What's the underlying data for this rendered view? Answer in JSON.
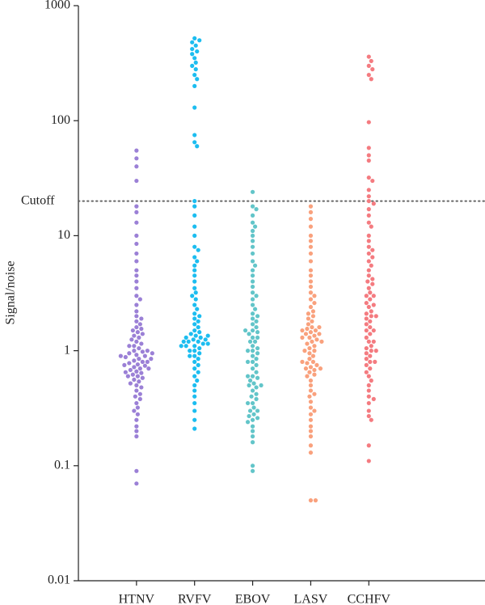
{
  "chart_data": {
    "type": "beeswarm",
    "y_label": "Signal/noise",
    "log_y": true,
    "ylim": [
      0.01,
      1000
    ],
    "yticks": [
      0.01,
      0.1,
      1,
      10,
      100,
      1000
    ],
    "cutoff": {
      "value": 20,
      "label": "Cutoff"
    },
    "series": [
      {
        "name": "HTNV",
        "color": "#9b80d6",
        "values": [
          55,
          47,
          40,
          30,
          18,
          16,
          13,
          10,
          8.5,
          7,
          6,
          5,
          4.5,
          4,
          3.5,
          3,
          2.8,
          2.5,
          2.2,
          2,
          1.9,
          1.8,
          1.7,
          1.6,
          1.55,
          1.5,
          1.45,
          1.4,
          1.35,
          1.3,
          1.25,
          1.2,
          1.15,
          1.1,
          1.05,
          1.0,
          0.98,
          0.95,
          0.92,
          0.9,
          0.88,
          0.85,
          0.82,
          0.8,
          0.78,
          0.76,
          0.74,
          0.72,
          0.7,
          0.68,
          0.66,
          0.64,
          0.62,
          0.6,
          0.58,
          0.56,
          0.54,
          0.52,
          0.5,
          0.48,
          0.45,
          0.42,
          0.4,
          0.38,
          0.35,
          0.32,
          0.3,
          0.28,
          0.25,
          0.22,
          0.2,
          0.18,
          0.09,
          0.07,
          0.8,
          0.75,
          0.85,
          0.9,
          0.7,
          1.0,
          1.1,
          0.6,
          0.65,
          0.95
        ]
      },
      {
        "name": "RVFV",
        "color": "#1cbdf0",
        "values": [
          520,
          500,
          480,
          450,
          420,
          400,
          380,
          350,
          320,
          300,
          280,
          250,
          230,
          200,
          130,
          75,
          65,
          60,
          20,
          18,
          15,
          12,
          10,
          8,
          7.5,
          6.5,
          6,
          5.5,
          5,
          4.5,
          4,
          3.5,
          3.2,
          3,
          2.8,
          2.5,
          2.3,
          2.1,
          2,
          1.9,
          1.8,
          1.7,
          1.6,
          1.5,
          1.45,
          1.4,
          1.35,
          1.3,
          1.25,
          1.2,
          1.2,
          1.15,
          1.1,
          1.1,
          1.05,
          1,
          1,
          0.95,
          0.9,
          0.9,
          0.85,
          0.8,
          0.75,
          0.7,
          0.65,
          0.6,
          0.55,
          0.5,
          0.45,
          0.4,
          0.35,
          0.3,
          0.25,
          0.21,
          1.2,
          1.3,
          1.25,
          1.15,
          1.1,
          1.35
        ]
      },
      {
        "name": "EBOV",
        "color": "#62c5c9",
        "values": [
          24,
          18,
          17,
          15,
          13,
          12,
          11,
          10,
          9,
          8,
          7,
          6,
          5.5,
          5,
          4.5,
          4,
          3.6,
          3.2,
          3,
          2.8,
          2.5,
          2.3,
          2.1,
          2,
          1.9,
          1.8,
          1.7,
          1.6,
          1.5,
          1.45,
          1.4,
          1.3,
          1.2,
          1.1,
          1.05,
          1,
          0.95,
          0.9,
          0.85,
          0.8,
          0.75,
          0.7,
          0.65,
          0.6,
          0.58,
          0.55,
          0.52,
          0.5,
          0.48,
          0.45,
          0.42,
          0.4,
          0.38,
          0.35,
          0.32,
          0.3,
          0.28,
          0.27,
          0.26,
          0.25,
          0.24,
          0.22,
          0.2,
          0.18,
          0.16,
          0.1,
          0.09,
          1.5,
          1.2,
          1.0,
          0.8,
          0.6,
          0.5,
          0.3,
          0.35,
          1.3
        ]
      },
      {
        "name": "LASV",
        "color": "#f9a17d",
        "values": [
          18,
          16,
          14,
          12,
          10,
          9,
          8,
          7,
          6,
          5,
          4.5,
          4,
          3.6,
          3.2,
          3,
          2.8,
          2.6,
          2.4,
          2.2,
          2.1,
          2,
          1.9,
          1.8,
          1.7,
          1.6,
          1.55,
          1.5,
          1.45,
          1.4,
          1.35,
          1.3,
          1.25,
          1.2,
          1.15,
          1.1,
          1.05,
          1,
          0.95,
          0.9,
          0.85,
          0.8,
          0.78,
          0.75,
          0.72,
          0.7,
          0.68,
          0.65,
          0.62,
          0.6,
          0.55,
          0.5,
          0.45,
          0.42,
          0.4,
          0.36,
          0.32,
          0.3,
          0.28,
          0.25,
          0.22,
          0.2,
          0.18,
          0.15,
          0.13,
          0.05,
          0.05,
          1.5,
          1.4,
          1.3,
          1.2,
          1.0,
          0.7,
          0.8,
          1.6
        ]
      },
      {
        "name": "CCHFV",
        "color": "#f47b80",
        "values": [
          360,
          330,
          300,
          280,
          250,
          230,
          97,
          58,
          50,
          45,
          32,
          30,
          25,
          22,
          20,
          19,
          17,
          15,
          13,
          12,
          10,
          9,
          8,
          7.5,
          7,
          6.5,
          6,
          5.5,
          5,
          4.5,
          4.2,
          4,
          3.8,
          3.5,
          3.2,
          3,
          2.8,
          2.6,
          2.4,
          2.2,
          2.1,
          2,
          1.9,
          1.8,
          1.7,
          1.6,
          1.5,
          1.4,
          1.3,
          1.2,
          1.1,
          1.05,
          1,
          0.95,
          0.9,
          0.85,
          0.8,
          0.75,
          0.7,
          0.65,
          0.6,
          0.55,
          0.5,
          0.45,
          0.4,
          0.38,
          0.35,
          0.3,
          0.27,
          0.25,
          0.15,
          0.11,
          2,
          1.5,
          1,
          0.8,
          3,
          2.5,
          1.2
        ]
      }
    ]
  }
}
